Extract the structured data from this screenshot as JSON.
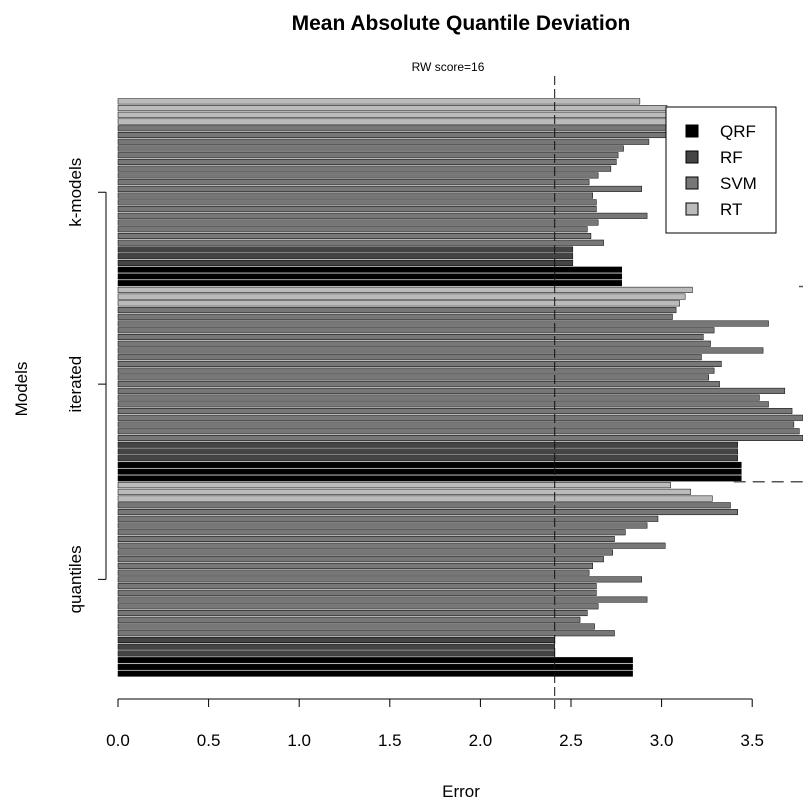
{
  "chart_data": {
    "type": "bar",
    "orientation": "horizontal",
    "title": "Mean Absolute Quantile Deviation",
    "xlabel": "Error",
    "ylabel": "Models",
    "xlim": [
      0,
      3.78
    ],
    "xticks": [
      "0.0",
      "0.5",
      "1.0",
      "1.5",
      "2.0",
      "2.5",
      "3.0",
      "3.5"
    ],
    "reference_line": {
      "x": 2.41,
      "label": "RW score=16"
    },
    "legend": {
      "position": "top-right",
      "entries": [
        {
          "name": "QRF",
          "color": "#000000"
        },
        {
          "name": "RF",
          "color": "#444444"
        },
        {
          "name": "SVM",
          "color": "#777777"
        },
        {
          "name": "RT",
          "color": "#bbbbbb"
        }
      ]
    },
    "groups": [
      {
        "name": "quantiles",
        "series": [
          {
            "name": "QRF",
            "color": "#000000",
            "values": [
              2.84,
              2.84,
              2.84
            ]
          },
          {
            "name": "RF",
            "color": "#444444",
            "values": [
              2.41,
              2.41,
              2.41
            ]
          },
          {
            "name": "SVM",
            "color": "#777777",
            "values": [
              2.74,
              2.63,
              2.55,
              2.59,
              2.65,
              2.92,
              2.64,
              2.64,
              2.89,
              2.6,
              2.62,
              2.68,
              2.73,
              3.02,
              2.74,
              2.8,
              2.92,
              2.98,
              3.42,
              3.38
            ]
          },
          {
            "name": "RT",
            "color": "#bbbbbb",
            "values": [
              3.28,
              3.16,
              3.05
            ]
          }
        ]
      },
      {
        "name": "iterated",
        "series": [
          {
            "name": "QRF",
            "color": "#000000",
            "values": [
              3.44,
              3.44,
              3.44
            ]
          },
          {
            "name": "RF",
            "color": "#444444",
            "values": [
              3.42,
              3.42,
              3.42
            ]
          },
          {
            "name": "SVM",
            "color": "#777777",
            "values": [
              3.78,
              3.76,
              3.73,
              3.78,
              3.72,
              3.59,
              3.54,
              3.68,
              3.32,
              3.26,
              3.29,
              3.33,
              3.22,
              3.56,
              3.27,
              3.23,
              3.29,
              3.59,
              3.06,
              3.08
            ]
          },
          {
            "name": "RT",
            "color": "#bbbbbb",
            "values": [
              3.1,
              3.13,
              3.17
            ]
          }
        ]
      },
      {
        "name": "k-models",
        "series": [
          {
            "name": "QRF",
            "color": "#000000",
            "values": [
              2.78,
              2.78,
              2.78
            ]
          },
          {
            "name": "RF",
            "color": "#444444",
            "values": [
              2.51,
              2.51,
              2.51
            ]
          },
          {
            "name": "SVM",
            "color": "#777777",
            "values": [
              2.68,
              2.61,
              2.59,
              2.65,
              2.92,
              2.64,
              2.64,
              2.62,
              2.89,
              2.6,
              2.65,
              2.72,
              2.75,
              2.76,
              2.79,
              2.93,
              3.03,
              3.44
            ]
          },
          {
            "name": "RT",
            "color": "#bbbbbb",
            "values": [
              3.17,
              3.1,
              3.03,
              2.88
            ]
          }
        ]
      }
    ],
    "separators_between_groups": true,
    "grid": false
  }
}
